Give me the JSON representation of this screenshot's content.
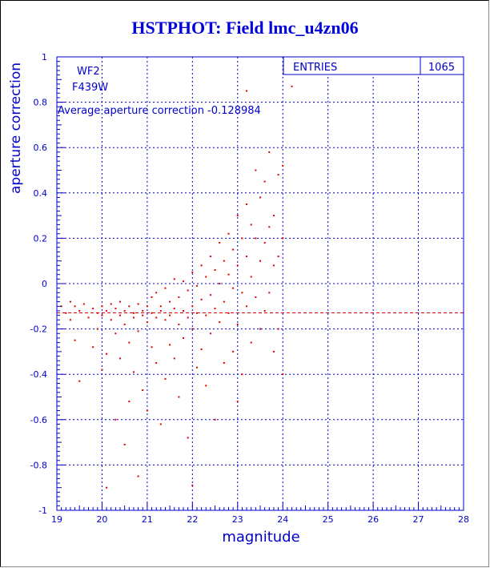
{
  "title": "HSTPHOT: Field lmc_u4zn06",
  "colors": {
    "axis": "#0000cc",
    "title": "#0000dd",
    "points": "#dd0000",
    "grid": "#0000cc"
  },
  "chart_data": {
    "type": "scatter",
    "title": "HSTPHOT: Field lmc_u4zn06",
    "xlabel": "magnitude",
    "ylabel": "aperture correction",
    "xlim": [
      19,
      28
    ],
    "ylim": [
      -1,
      1
    ],
    "xticks": [
      "19",
      "20",
      "21",
      "22",
      "23",
      "24",
      "25",
      "26",
      "27",
      "28"
    ],
    "yticks": [
      "1",
      "0.8",
      "0.6",
      "0.4",
      "0.2",
      "0",
      "-0.2",
      "-0.4",
      "-0.6",
      "-0.8",
      "-1"
    ],
    "grid": true,
    "annotations": {
      "chip": "WF2",
      "filter": "F439W",
      "average_text": "Average aperture correction -0.128984",
      "average_value": -0.128984
    },
    "stats_box": {
      "label": "ENTRIES",
      "value": "1065"
    },
    "series": [
      {
        "marker": "dot",
        "points": [
          [
            19.1,
            -0.1
          ],
          [
            19.2,
            -0.13
          ],
          [
            19.3,
            -0.08
          ],
          [
            19.3,
            -0.16
          ],
          [
            19.4,
            -0.1
          ],
          [
            19.4,
            -0.25
          ],
          [
            19.5,
            -0.12
          ],
          [
            19.5,
            -0.43
          ],
          [
            19.6,
            -0.09
          ],
          [
            19.7,
            -0.15
          ],
          [
            19.8,
            -0.11
          ],
          [
            19.8,
            -0.28
          ],
          [
            19.9,
            -0.13
          ],
          [
            19.9,
            -0.2
          ],
          [
            20.0,
            -0.1
          ],
          [
            20.0,
            -0.14
          ],
          [
            20.0,
            -0.38
          ],
          [
            20.1,
            -0.12
          ],
          [
            20.1,
            -0.31
          ],
          [
            20.1,
            -0.9
          ],
          [
            20.2,
            -0.09
          ],
          [
            20.2,
            -0.16
          ],
          [
            20.3,
            -0.11
          ],
          [
            20.3,
            -0.22
          ],
          [
            20.3,
            -0.6
          ],
          [
            20.4,
            -0.14
          ],
          [
            20.4,
            -0.08
          ],
          [
            20.4,
            -0.33
          ],
          [
            20.5,
            -0.12
          ],
          [
            20.5,
            -0.18
          ],
          [
            20.5,
            -0.71
          ],
          [
            20.6,
            -0.1
          ],
          [
            20.6,
            -0.26
          ],
          [
            20.6,
            -0.52
          ],
          [
            20.7,
            -0.13
          ],
          [
            20.7,
            -0.15
          ],
          [
            20.7,
            -0.39
          ],
          [
            20.8,
            -0.09
          ],
          [
            20.8,
            -0.21
          ],
          [
            20.8,
            -0.85
          ],
          [
            20.9,
            -0.12
          ],
          [
            20.9,
            -0.14
          ],
          [
            20.9,
            -0.47
          ],
          [
            21.0,
            -0.1
          ],
          [
            21.0,
            -0.17
          ],
          [
            21.0,
            -0.56
          ],
          [
            21.1,
            -0.06
          ],
          [
            21.1,
            -0.13
          ],
          [
            21.1,
            -0.28
          ],
          [
            21.2,
            -0.04
          ],
          [
            21.2,
            -0.15
          ],
          [
            21.2,
            -0.35
          ],
          [
            21.3,
            -0.1
          ],
          [
            21.3,
            -0.12
          ],
          [
            21.3,
            -0.62
          ],
          [
            21.4,
            -0.02
          ],
          [
            21.4,
            -0.16
          ],
          [
            21.4,
            -0.42
          ],
          [
            21.5,
            -0.08
          ],
          [
            21.5,
            -0.14
          ],
          [
            21.5,
            -0.27
          ],
          [
            21.6,
            0.02
          ],
          [
            21.6,
            -0.11
          ],
          [
            21.6,
            -0.33
          ],
          [
            21.7,
            -0.06
          ],
          [
            21.7,
            -0.18
          ],
          [
            21.7,
            -0.5
          ],
          [
            21.8,
            0.01
          ],
          [
            21.8,
            -0.12
          ],
          [
            21.8,
            -0.24
          ],
          [
            21.9,
            -0.03
          ],
          [
            21.9,
            -0.15
          ],
          [
            21.9,
            -0.68
          ],
          [
            22.0,
            0.05
          ],
          [
            22.0,
            -0.1
          ],
          [
            22.0,
            -0.2
          ],
          [
            22.0,
            -0.89
          ],
          [
            22.1,
            -0.01
          ],
          [
            22.1,
            -0.13
          ],
          [
            22.1,
            -0.37
          ],
          [
            22.2,
            0.08
          ],
          [
            22.2,
            -0.07
          ],
          [
            22.2,
            -0.29
          ],
          [
            22.3,
            0.03
          ],
          [
            22.3,
            -0.14
          ],
          [
            22.3,
            -0.45
          ],
          [
            22.4,
            0.12
          ],
          [
            22.4,
            -0.05
          ],
          [
            22.4,
            -0.22
          ],
          [
            22.5,
            0.06
          ],
          [
            22.5,
            -0.11
          ],
          [
            22.5,
            -0.6
          ],
          [
            22.6,
            0.18
          ],
          [
            22.6,
            0.0
          ],
          [
            22.6,
            -0.17
          ],
          [
            22.7,
            0.1
          ],
          [
            22.7,
            -0.08
          ],
          [
            22.7,
            -0.35
          ],
          [
            22.8,
            0.22
          ],
          [
            22.8,
            0.04
          ],
          [
            22.8,
            -0.13
          ],
          [
            22.9,
            0.15
          ],
          [
            22.9,
            -0.02
          ],
          [
            22.9,
            -0.3
          ],
          [
            23.0,
            0.3
          ],
          [
            23.0,
            0.08
          ],
          [
            23.0,
            -0.18
          ],
          [
            23.0,
            -0.52
          ],
          [
            23.1,
            0.2
          ],
          [
            23.1,
            -0.04
          ],
          [
            23.1,
            -0.4
          ],
          [
            23.2,
            0.85
          ],
          [
            23.2,
            0.35
          ],
          [
            23.2,
            0.12
          ],
          [
            23.2,
            -0.1
          ],
          [
            23.3,
            0.26
          ],
          [
            23.3,
            0.03
          ],
          [
            23.3,
            -0.26
          ],
          [
            23.4,
            0.5
          ],
          [
            23.4,
            0.2
          ],
          [
            23.4,
            -0.06
          ],
          [
            23.5,
            0.38
          ],
          [
            23.5,
            0.1
          ],
          [
            23.5,
            -0.2
          ],
          [
            23.6,
            0.45
          ],
          [
            23.6,
            0.18
          ],
          [
            23.6,
            -0.12
          ],
          [
            23.7,
            0.58
          ],
          [
            23.7,
            0.25
          ],
          [
            23.7,
            -0.04
          ],
          [
            23.8,
            0.3
          ],
          [
            23.8,
            0.08
          ],
          [
            23.8,
            -0.3
          ],
          [
            23.9,
            0.48
          ],
          [
            23.9,
            0.12
          ],
          [
            23.9,
            -0.2
          ],
          [
            24.0,
            0.52
          ],
          [
            24.0,
            0.2
          ],
          [
            24.0,
            -0.4
          ],
          [
            24.2,
            0.87
          ]
        ]
      }
    ]
  }
}
